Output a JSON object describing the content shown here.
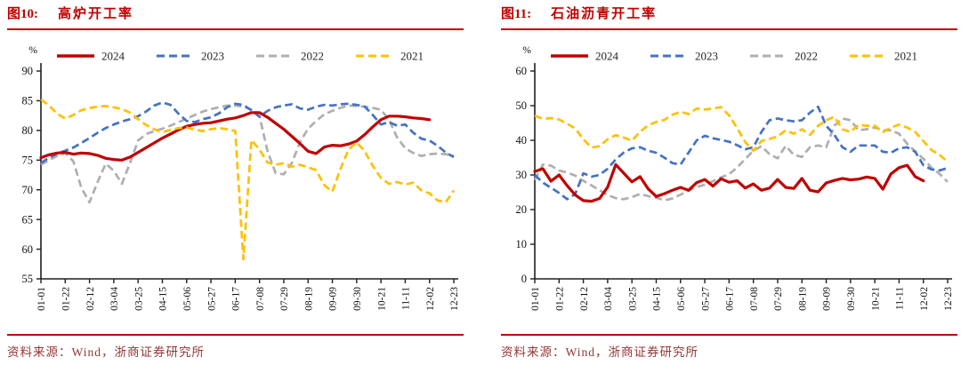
{
  "chart_data": [
    {
      "type": "line",
      "fig_label": "图10:",
      "title": "高炉开工率",
      "ylabel": "%",
      "ylim": [
        55,
        90
      ],
      "ytick_step": 5,
      "grid": false,
      "legend_position": "top",
      "x_note": "weekly points (52 per year), tick labels every 3 weeks",
      "x_tick_labels": [
        "01-01",
        "01-22",
        "02-12",
        "03-04",
        "03-25",
        "04-15",
        "05-06",
        "05-27",
        "06-17",
        "07-08",
        "07-29",
        "08-19",
        "09-09",
        "09-30",
        "10-21",
        "11-11",
        "12-02",
        "12-23"
      ],
      "series": [
        {
          "name": "2024",
          "color": "#c00000",
          "style": "solid",
          "values": [
            75.4,
            75.9,
            76.2,
            76.3,
            76.0,
            76.2,
            76.1,
            75.8,
            75.3,
            75.1,
            75.0,
            75.5,
            76.3,
            77.1,
            77.9,
            78.7,
            79.4,
            80.1,
            80.7,
            81.0,
            81.2,
            81.3,
            81.6,
            81.9,
            82.1,
            82.5,
            83.0,
            83.0,
            82.2,
            81.2,
            80.2,
            79.0,
            77.8,
            76.5,
            76.1,
            77.2,
            77.5,
            77.4,
            77.7,
            78.2,
            79.3,
            80.6,
            81.8,
            82.4,
            82.4,
            82.3,
            82.1,
            82.0,
            81.8
          ]
        },
        {
          "name": "2023",
          "color": "#4472c4",
          "style": "dashed",
          "values": [
            74.5,
            75.4,
            76.1,
            76.6,
            77.1,
            77.9,
            78.7,
            79.6,
            80.4,
            81.0,
            81.5,
            81.9,
            82.4,
            83.2,
            84.2,
            84.7,
            84.3,
            82.8,
            81.6,
            81.4,
            81.9,
            82.2,
            82.9,
            83.9,
            84.5,
            84.3,
            83.4,
            82.3,
            83.3,
            83.9,
            84.2,
            84.4,
            83.7,
            83.5,
            84.0,
            84.3,
            84.2,
            84.4,
            84.5,
            84.3,
            84.0,
            82.6,
            81.0,
            81.4,
            80.8,
            81.0,
            79.6,
            78.6,
            78.3,
            77.4,
            76.3,
            75.5
          ]
        },
        {
          "name": "2022",
          "color": "#afafaf",
          "style": "dashed",
          "values": [
            74.2,
            75.0,
            75.7,
            76.2,
            74.8,
            70.3,
            67.9,
            71.3,
            74.4,
            73.2,
            71.0,
            74.5,
            78.3,
            79.4,
            79.9,
            80.3,
            80.8,
            81.4,
            82.0,
            82.6,
            83.2,
            83.6,
            83.9,
            84.2,
            84.2,
            84.0,
            83.5,
            82.4,
            76.5,
            72.8,
            72.6,
            74.5,
            78.0,
            80.3,
            81.6,
            82.7,
            83.3,
            83.8,
            84.2,
            84.1,
            84.0,
            83.8,
            83.5,
            81.8,
            78.8,
            77.0,
            76.2,
            75.7,
            76.0,
            76.1,
            76.0,
            75.7
          ]
        },
        {
          "name": "2021",
          "color": "#ffc000",
          "style": "dashed",
          "values": [
            85.2,
            84.2,
            82.8,
            82.0,
            82.6,
            83.4,
            83.8,
            84.0,
            84.1,
            83.9,
            83.6,
            83.0,
            81.9,
            80.9,
            80.2,
            79.7,
            80.1,
            80.4,
            80.5,
            80.1,
            79.9,
            80.2,
            80.4,
            80.2,
            79.9,
            58.3,
            78.4,
            76.8,
            74.6,
            74.2,
            74.5,
            73.9,
            74.2,
            73.8,
            73.3,
            70.8,
            69.7,
            73.5,
            76.8,
            78.0,
            76.5,
            74.0,
            72.0,
            71.0,
            71.3,
            70.9,
            71.2,
            69.9,
            69.4,
            68.2,
            67.9,
            69.9
          ]
        }
      ]
    },
    {
      "type": "line",
      "fig_label": "图11:",
      "title": "石油沥青开工率",
      "ylabel": "%",
      "ylim": [
        0,
        60
      ],
      "ytick_step": 10,
      "grid": false,
      "legend_position": "top",
      "x_note": "weekly points (52 per year), tick labels every 3 weeks",
      "x_tick_labels": [
        "01-01",
        "01-22",
        "02-12",
        "03-04",
        "03-25",
        "04-15",
        "05-06",
        "05-27",
        "06-17",
        "07-08",
        "07-29",
        "08-19",
        "09-09",
        "09-30",
        "10-21",
        "11-11",
        "12-02",
        "12-23"
      ],
      "series": [
        {
          "name": "2024",
          "color": "#c00000",
          "style": "solid",
          "values": [
            31.0,
            31.8,
            28.2,
            30.0,
            26.9,
            24.2,
            22.6,
            22.4,
            23.2,
            26.5,
            33.0,
            30.5,
            28.0,
            29.5,
            26.0,
            23.8,
            24.6,
            25.6,
            26.4,
            25.6,
            27.8,
            28.7,
            26.8,
            28.9,
            27.9,
            28.3,
            26.2,
            27.4,
            25.6,
            26.2,
            28.7,
            26.4,
            26.1,
            29.0,
            25.6,
            25.1,
            27.7,
            28.4,
            29.0,
            28.6,
            28.8,
            29.4,
            29.0,
            25.9,
            30.3,
            32.1,
            32.8,
            29.5,
            28.3
          ]
        },
        {
          "name": "2023",
          "color": "#4472c4",
          "style": "dashed",
          "values": [
            30.0,
            27.8,
            26.3,
            24.8,
            23.0,
            24.5,
            30.5,
            29.5,
            30.0,
            31.8,
            34.5,
            36.5,
            37.7,
            38.0,
            37.0,
            36.4,
            35.0,
            33.4,
            33.0,
            36.5,
            40.0,
            41.3,
            40.6,
            40.1,
            39.6,
            38.6,
            37.4,
            38.0,
            42.4,
            45.8,
            46.3,
            45.8,
            45.5,
            45.8,
            48.0,
            49.7,
            44.2,
            41.6,
            38.0,
            36.7,
            38.5,
            38.5,
            38.5,
            36.7,
            36.4,
            37.7,
            38.0,
            36.7,
            32.8,
            31.6,
            31.3,
            32.0
          ]
        },
        {
          "name": "2022",
          "color": "#afafaf",
          "style": "dashed",
          "values": [
            28.5,
            33.0,
            32.7,
            31.3,
            30.7,
            29.8,
            28.3,
            27.0,
            25.6,
            24.2,
            23.3,
            23.0,
            23.6,
            24.5,
            23.9,
            23.4,
            22.7,
            23.2,
            24.3,
            25.5,
            26.5,
            27.2,
            28.2,
            29.3,
            30.2,
            32.2,
            34.6,
            37.0,
            38.3,
            36.0,
            34.8,
            38.4,
            35.8,
            35.2,
            38.0,
            38.5,
            38.0,
            44.2,
            46.3,
            45.8,
            42.9,
            43.2,
            43.7,
            42.9,
            42.9,
            41.9,
            39.0,
            36.8,
            34.7,
            32.1,
            30.3,
            28.0
          ]
        },
        {
          "name": "2021",
          "color": "#ffc000",
          "style": "dashed",
          "values": [
            47.1,
            46.2,
            46.4,
            46.0,
            44.8,
            43.4,
            40.3,
            37.9,
            38.3,
            40.3,
            41.5,
            40.8,
            39.9,
            42.5,
            44.3,
            45.3,
            45.9,
            47.4,
            48.2,
            47.6,
            49.2,
            48.9,
            49.2,
            49.6,
            47.2,
            43.5,
            39.5,
            37.0,
            39.8,
            40.4,
            41.1,
            42.9,
            41.9,
            43.2,
            41.6,
            44.2,
            45.8,
            46.8,
            43.2,
            42.4,
            44.5,
            44.2,
            44.2,
            42.4,
            43.7,
            44.5,
            43.7,
            42.4,
            39.8,
            37.2,
            35.8,
            33.8
          ]
        }
      ]
    }
  ],
  "footer": {
    "source": "资料来源：Wind，浙商证券研究所"
  },
  "accent_color": "#c00000"
}
